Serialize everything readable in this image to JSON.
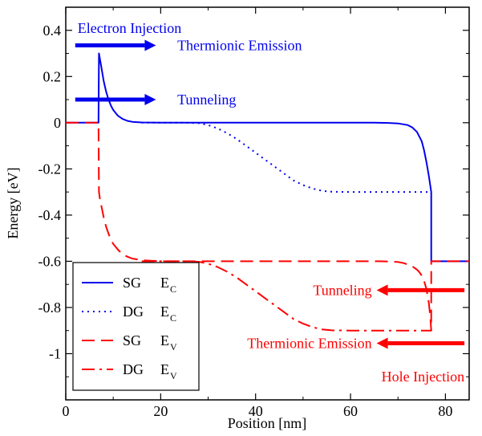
{
  "chart_data": {
    "type": "line",
    "xlabel": "Position [nm]",
    "ylabel": "Energy [eV]",
    "xlim": [
      0,
      85
    ],
    "ylim": [
      -1.2,
      0.5
    ],
    "xticks": [
      0,
      20,
      40,
      60,
      80
    ],
    "yticks": [
      0.4,
      0.2,
      0,
      -0.2,
      -0.4,
      -0.6,
      -0.8,
      -1
    ],
    "ytick_labels": [
      "0.4",
      "0.2",
      "0",
      "-0.2",
      "-0.4",
      "-0.6",
      "-0.8",
      "-1"
    ],
    "legend_position": "bottom-left",
    "colors": {
      "blue": "#0000ee",
      "red": "#ff0000"
    },
    "series": [
      {
        "name": "SG",
        "subscript": "C",
        "color": "blue",
        "dash": "solid",
        "x": [
          0,
          6.9,
          7,
          7.5,
          8,
          8.5,
          9,
          9.5,
          10,
          11,
          12,
          13,
          14,
          16,
          20,
          30,
          40,
          50,
          60,
          65,
          68,
          70,
          72,
          73,
          74,
          75,
          75.5,
          76,
          76.5,
          77,
          77,
          85
        ],
        "y": [
          0,
          0,
          0.3,
          0.24,
          0.18,
          0.135,
          0.1,
          0.075,
          0.055,
          0.03,
          0.016,
          0.008,
          0.004,
          0.001,
          0,
          0,
          0,
          0,
          0,
          0,
          -0.001,
          -0.003,
          -0.01,
          -0.02,
          -0.04,
          -0.08,
          -0.12,
          -0.17,
          -0.23,
          -0.3,
          -0.6,
          -0.6
        ]
      },
      {
        "name": "DG",
        "subscript": "C",
        "color": "blue",
        "dash": "dot",
        "x": [
          16,
          20,
          25,
          28,
          30,
          32,
          34,
          36,
          38,
          40,
          42,
          44,
          46,
          48,
          50,
          52,
          54,
          56,
          60,
          65,
          70,
          75,
          77
        ],
        "y": [
          0,
          0,
          0,
          -0.002,
          -0.01,
          -0.025,
          -0.045,
          -0.07,
          -0.1,
          -0.13,
          -0.16,
          -0.19,
          -0.22,
          -0.25,
          -0.27,
          -0.285,
          -0.295,
          -0.299,
          -0.3,
          -0.3,
          -0.3,
          -0.3,
          -0.3
        ]
      },
      {
        "name": "SG",
        "subscript": "V",
        "color": "red",
        "dash": "dash",
        "x": [
          0,
          6.9,
          7,
          7.2,
          7.5,
          8,
          8.5,
          9,
          9.5,
          10,
          11,
          12,
          13,
          14,
          16,
          18,
          20,
          30,
          40,
          50,
          60,
          66,
          68,
          70,
          71,
          72,
          73,
          74,
          74.5,
          75,
          75.5,
          76,
          76.5,
          76.8,
          77,
          77,
          85
        ],
        "y": [
          0,
          0,
          -0.3,
          -0.33,
          -0.36,
          -0.41,
          -0.45,
          -0.48,
          -0.505,
          -0.525,
          -0.55,
          -0.57,
          -0.58,
          -0.588,
          -0.595,
          -0.598,
          -0.6,
          -0.6,
          -0.6,
          -0.6,
          -0.6,
          -0.6,
          -0.601,
          -0.603,
          -0.607,
          -0.613,
          -0.622,
          -0.636,
          -0.647,
          -0.662,
          -0.685,
          -0.72,
          -0.78,
          -0.84,
          -0.9,
          -0.6,
          -0.6
        ]
      },
      {
        "name": "DG",
        "subscript": "V",
        "color": "red",
        "dash": "dashdot",
        "x": [
          16,
          20,
          25,
          28,
          30,
          32,
          34,
          36,
          38,
          40,
          42,
          44,
          46,
          48,
          50,
          52,
          54,
          56,
          60,
          65,
          70,
          75,
          77
        ],
        "y": [
          -0.6,
          -0.6,
          -0.6,
          -0.602,
          -0.61,
          -0.625,
          -0.645,
          -0.67,
          -0.7,
          -0.73,
          -0.76,
          -0.79,
          -0.82,
          -0.85,
          -0.87,
          -0.885,
          -0.895,
          -0.899,
          -0.9,
          -0.9,
          -0.9,
          -0.9,
          -0.9
        ]
      }
    ],
    "annotations": [
      {
        "text": "Electron Injection",
        "color": "blue",
        "x": 2.5,
        "y": 0.41
      },
      {
        "text": "Thermionic Emission",
        "color": "blue",
        "x": 23.5,
        "y": 0.335,
        "arrow": {
          "from": 2,
          "to": 19,
          "y": 0.335
        }
      },
      {
        "text": "Tunneling",
        "color": "blue",
        "x": 23.5,
        "y": 0.1,
        "arrow": {
          "from": 2,
          "to": 19,
          "y": 0.1
        }
      },
      {
        "text": "Tunneling",
        "color": "red",
        "x": 64.5,
        "y": -0.725,
        "arrow": {
          "from": 84,
          "to": 65.5,
          "y": -0.725
        }
      },
      {
        "text": "Thermionic Emission",
        "color": "red",
        "x": 64.5,
        "y": -0.955,
        "arrow": {
          "from": 84,
          "to": 65.5,
          "y": -0.955
        }
      },
      {
        "text": "Hole Injection",
        "color": "red",
        "x": 84,
        "y": -1.1
      }
    ]
  }
}
